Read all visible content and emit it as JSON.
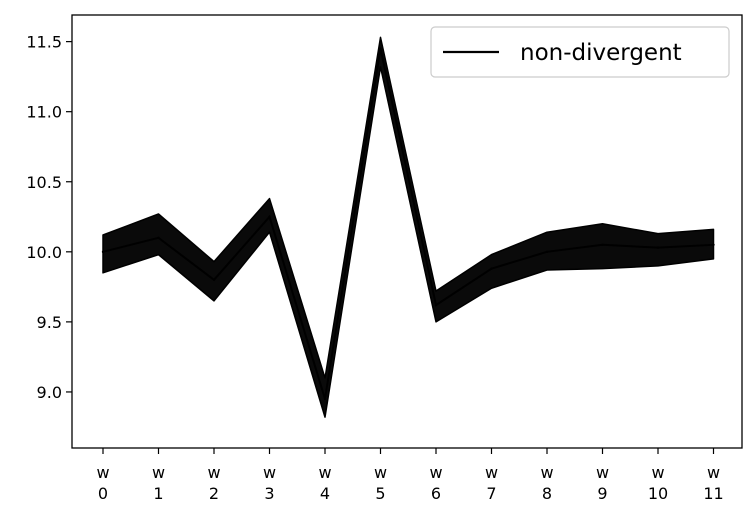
{
  "chart_data": {
    "type": "line",
    "title": "",
    "xlabel": "",
    "ylabel": "",
    "categories": [
      [
        "w",
        "0"
      ],
      [
        "w",
        "1"
      ],
      [
        "w",
        "2"
      ],
      [
        "w",
        "3"
      ],
      [
        "w",
        "4"
      ],
      [
        "w",
        "5"
      ],
      [
        "w",
        "6"
      ],
      [
        "w",
        "7"
      ],
      [
        "w",
        "8"
      ],
      [
        "w",
        "9"
      ],
      [
        "w",
        "10"
      ],
      [
        "w",
        "11"
      ]
    ],
    "x": [
      0,
      1,
      2,
      3,
      4,
      5,
      6,
      7,
      8,
      9,
      10,
      11
    ],
    "ylim": [
      8.6,
      11.69
    ],
    "yticks": [
      9.0,
      9.5,
      10.0,
      10.5,
      11.0,
      11.5
    ],
    "ytick_labels": [
      "9.0",
      "9.5",
      "10.0",
      "10.5",
      "11.0",
      "11.5"
    ],
    "grid": false,
    "legend": {
      "position": "top-right",
      "entries": [
        "non-divergent"
      ]
    },
    "series": [
      {
        "name": "non-divergent",
        "color": "#000000",
        "mean": [
          10.0,
          10.1,
          9.8,
          10.25,
          8.95,
          11.45,
          9.62,
          9.88,
          10.0,
          10.05,
          10.03,
          10.05
        ],
        "lower": [
          9.85,
          9.98,
          9.65,
          10.14,
          8.82,
          11.32,
          9.5,
          9.74,
          9.87,
          9.88,
          9.9,
          9.95
        ],
        "upper": [
          10.12,
          10.27,
          9.93,
          10.38,
          9.1,
          11.53,
          9.72,
          9.98,
          10.14,
          10.2,
          10.13,
          10.16
        ]
      }
    ]
  }
}
